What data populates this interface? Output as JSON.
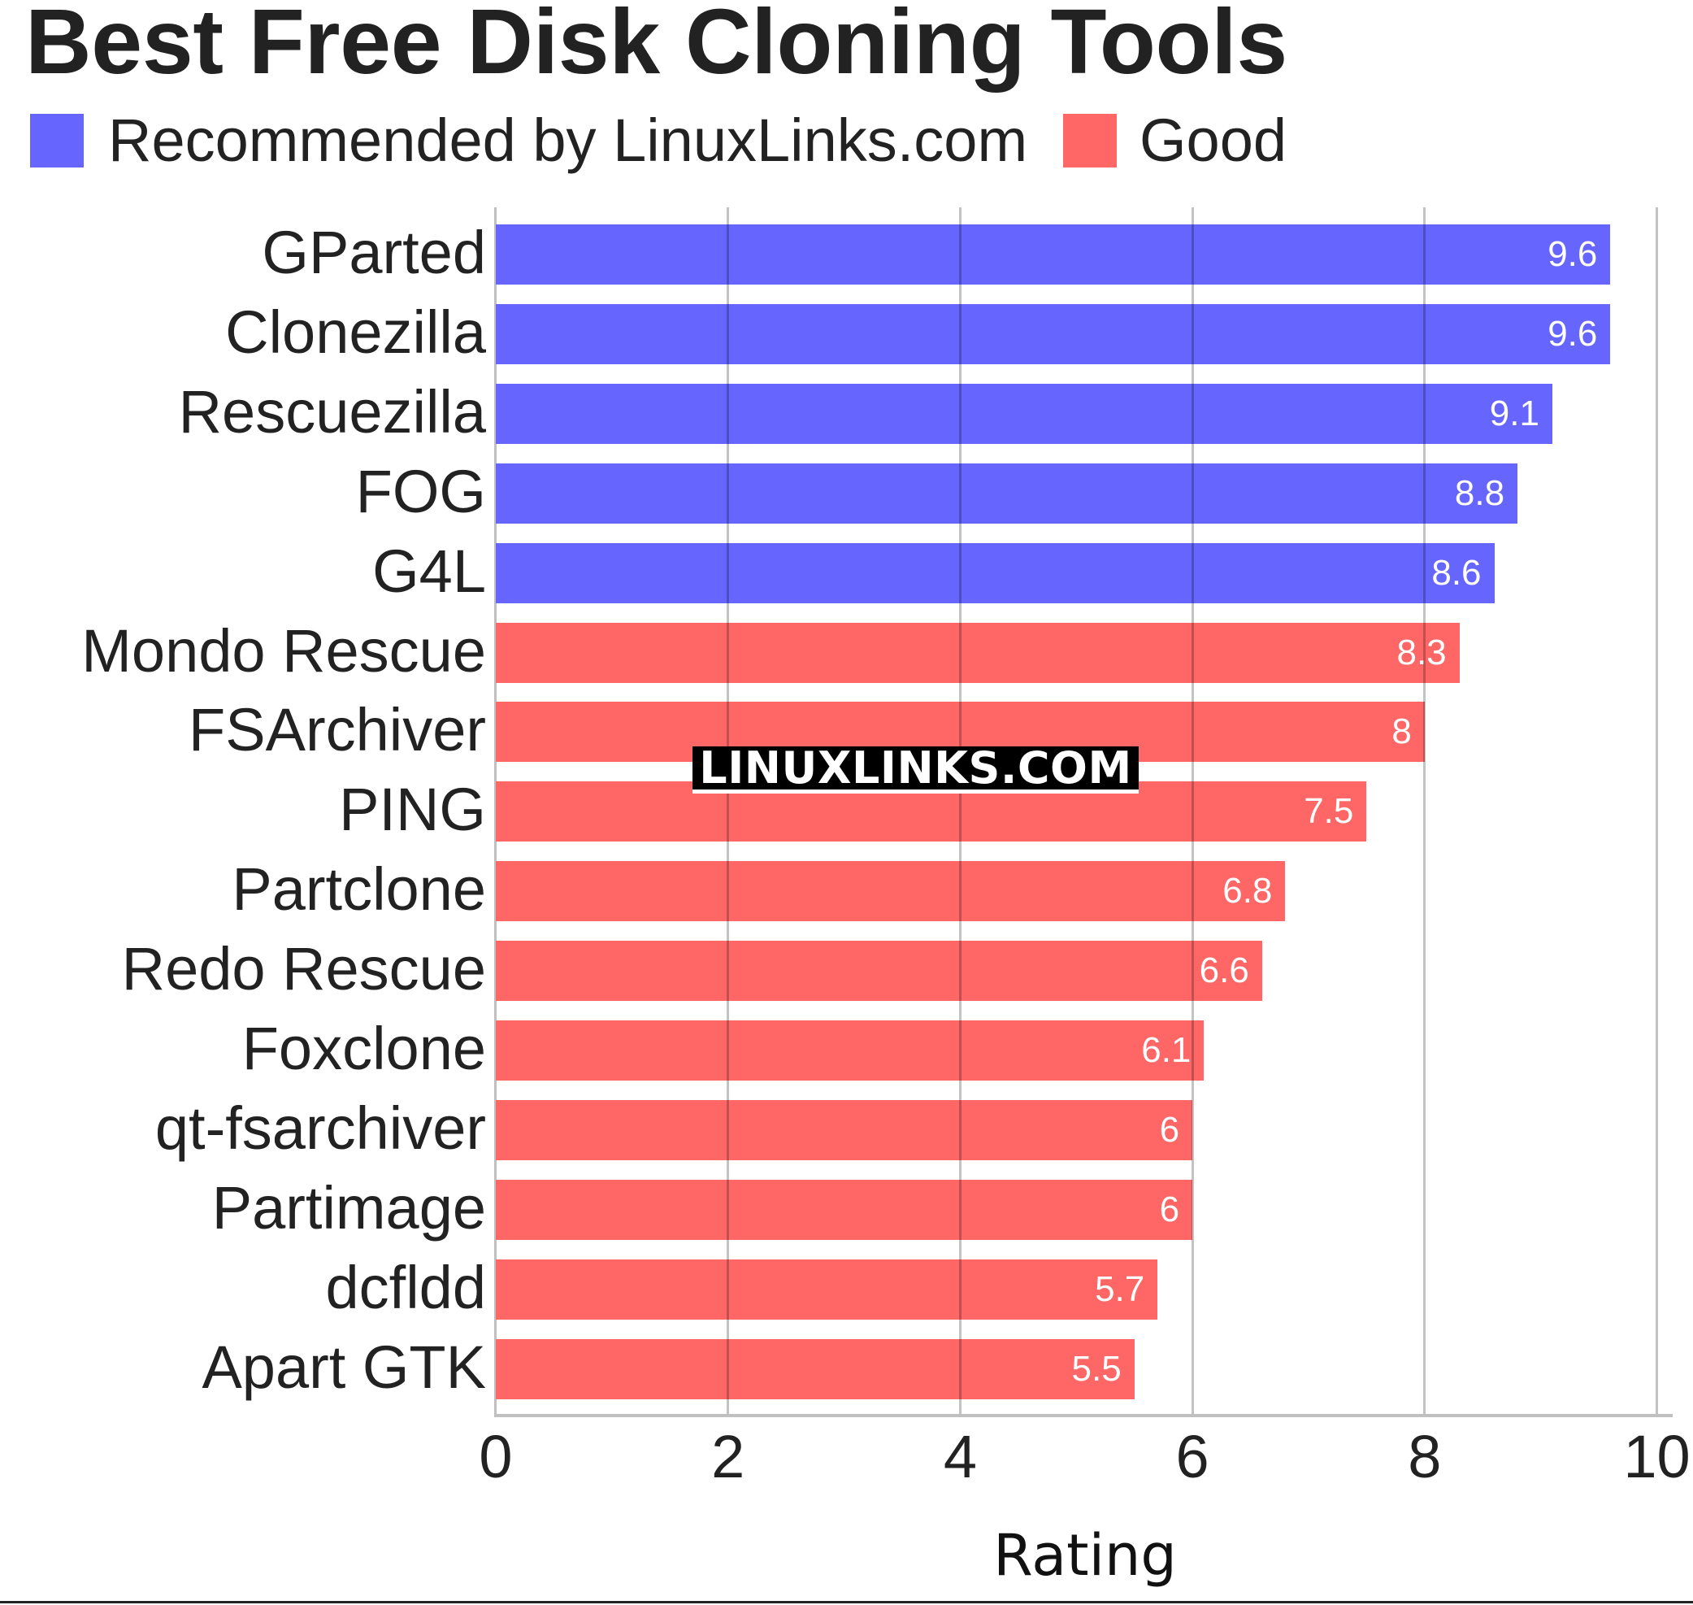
{
  "title": "Best Free Disk Cloning Tools",
  "legend": [
    {
      "label": "Recommended by LinuxLinks.com",
      "color": "#6666ff"
    },
    {
      "label": "Good",
      "color": "#ff6666"
    }
  ],
  "watermark": "LINUXLINKS.COM",
  "colors": {
    "recommended": "#6666ff",
    "good": "#ff6666",
    "grid": "#c0c0c0",
    "text": "#222222"
  },
  "chart_data": {
    "type": "bar",
    "orientation": "horizontal",
    "title": "Best Free Disk Cloning Tools",
    "xlabel": "Rating",
    "ylabel": "",
    "xlim": [
      0,
      10
    ],
    "xticks": [
      0,
      2,
      4,
      6,
      8,
      10
    ],
    "grid": "vertical",
    "legend_position": "top-left",
    "categories": [
      "GParted",
      "Clonezilla",
      "Rescuezilla",
      "FOG",
      "G4L",
      "Mondo Rescue",
      "FSArchiver",
      "PING",
      "Partclone",
      "Redo Rescue",
      "Foxclone",
      "qt-fsarchiver",
      "Partimage",
      "dcfldd",
      "Apart GTK"
    ],
    "values": [
      9.6,
      9.6,
      9.1,
      8.8,
      8.6,
      8.3,
      8,
      7.5,
      6.8,
      6.6,
      6.1,
      6,
      6,
      5.7,
      5.5
    ],
    "value_labels": [
      "9.6",
      "9.6",
      "9.1",
      "8.8",
      "8.6",
      "8.3",
      "8",
      "7.5",
      "6.8",
      "6.6",
      "6.1",
      "6",
      "6",
      "5.7",
      "5.5"
    ],
    "groups": [
      "Recommended by LinuxLinks.com",
      "Recommended by LinuxLinks.com",
      "Recommended by LinuxLinks.com",
      "Recommended by LinuxLinks.com",
      "Recommended by LinuxLinks.com",
      "Good",
      "Good",
      "Good",
      "Good",
      "Good",
      "Good",
      "Good",
      "Good",
      "Good",
      "Good"
    ],
    "series": [
      {
        "name": "Recommended by LinuxLinks.com",
        "color": "#6666ff",
        "categories": [
          "GParted",
          "Clonezilla",
          "Rescuezilla",
          "FOG",
          "G4L"
        ],
        "values": [
          9.6,
          9.6,
          9.1,
          8.8,
          8.6
        ]
      },
      {
        "name": "Good",
        "color": "#ff6666",
        "categories": [
          "Mondo Rescue",
          "FSArchiver",
          "PING",
          "Partclone",
          "Redo Rescue",
          "Foxclone",
          "qt-fsarchiver",
          "Partimage",
          "dcfldd",
          "Apart GTK"
        ],
        "values": [
          8.3,
          8,
          7.5,
          6.8,
          6.6,
          6.1,
          6,
          6,
          5.7,
          5.5
        ]
      }
    ]
  }
}
